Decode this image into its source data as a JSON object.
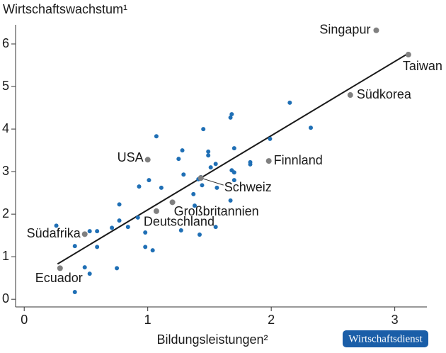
{
  "chart_data": {
    "type": "scatter",
    "title": "Wirtschaftswachstum¹",
    "x_label": "Bildungsleistungen²",
    "badge": "Wirtschaftsdienst",
    "xlim": [
      -0.07,
      3.26
    ],
    "ylim": [
      -0.18,
      6.45
    ],
    "xticks": [
      0,
      1,
      2,
      3
    ],
    "yticks": [
      0,
      1,
      2,
      3,
      4,
      5,
      6
    ],
    "grid": false,
    "color": "#1f6fb5",
    "highlight_color": "#808080",
    "line_color": "#1a1a1a",
    "x": [
      0.26,
      0.41,
      0.41,
      0.49,
      0.53,
      0.53,
      0.59,
      0.59,
      0.71,
      0.75,
      0.77,
      0.77,
      0.84,
      0.92,
      0.93,
      0.98,
      0.98,
      1.01,
      1.04,
      1.07,
      1.11,
      1.25,
      1.28,
      1.27,
      1.29,
      1.37,
      1.38,
      1.41,
      1.43,
      1.44,
      1.45,
      1.42,
      1.49,
      1.49,
      1.51,
      1.55,
      1.56,
      1.55,
      1.67,
      1.68,
      1.67,
      1.68,
      1.7,
      1.7,
      1.7,
      1.83,
      1.83,
      1.99,
      2.15,
      2.32
    ],
    "y": [
      1.73,
      1.25,
      0.17,
      0.75,
      1.6,
      0.6,
      1.6,
      1.23,
      1.68,
      0.73,
      2.23,
      1.85,
      1.7,
      1.92,
      2.65,
      1.57,
      1.23,
      2.8,
      1.15,
      3.83,
      2.62,
      3.3,
      3.5,
      1.62,
      2.93,
      2.47,
      2.2,
      2.82,
      2.87,
      2.68,
      4.0,
      1.52,
      3.47,
      3.38,
      3.1,
      3.18,
      2.62,
      1.7,
      4.27,
      4.35,
      2.32,
      3.03,
      2.98,
      3.55,
      2.8,
      3.22,
      3.17,
      3.77,
      4.62,
      4.03
    ],
    "labeled_points": [
      {
        "label": "Singapur",
        "x": 2.85,
        "y": 6.32
      },
      {
        "label": "Taiwan",
        "x": 3.11,
        "y": 5.75
      },
      {
        "label": "Südkorea",
        "x": 2.64,
        "y": 4.8
      },
      {
        "label": "USA",
        "x": 1.0,
        "y": 3.28
      },
      {
        "label": "Finnland",
        "x": 1.98,
        "y": 3.25
      },
      {
        "label": "Schweiz",
        "x": 1.43,
        "y": 2.85
      },
      {
        "label": "Großbritannien",
        "x": 1.2,
        "y": 2.28
      },
      {
        "label": "Deutschland",
        "x": 1.07,
        "y": 2.07
      },
      {
        "label": "Südafrika",
        "x": 0.49,
        "y": 1.53
      },
      {
        "label": "Ecuador",
        "x": 0.29,
        "y": 0.73
      }
    ],
    "trendline": {
      "x": [
        0.27,
        3.11
      ],
      "y": [
        0.83,
        5.78
      ]
    }
  }
}
